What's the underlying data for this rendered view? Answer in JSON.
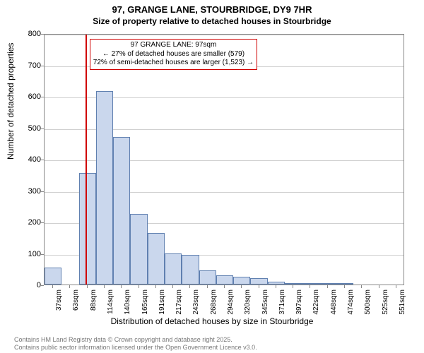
{
  "title_main": "97, GRANGE LANE, STOURBRIDGE, DY9 7HR",
  "title_sub": "Size of property relative to detached houses in Stourbridge",
  "y_axis_title": "Number of detached properties",
  "x_axis_title": "Distribution of detached houses by size in Stourbridge",
  "chart": {
    "type": "histogram",
    "ylim": [
      0,
      800
    ],
    "ytick_step": 100,
    "y_ticks": [
      0,
      100,
      200,
      300,
      400,
      500,
      600,
      700,
      800
    ],
    "x_tick_labels": [
      "37sqm",
      "63sqm",
      "88sqm",
      "114sqm",
      "140sqm",
      "165sqm",
      "191sqm",
      "217sqm",
      "243sqm",
      "268sqm",
      "294sqm",
      "320sqm",
      "345sqm",
      "371sqm",
      "397sqm",
      "422sqm",
      "448sqm",
      "474sqm",
      "500sqm",
      "525sqm",
      "551sqm"
    ],
    "values": [
      55,
      0,
      355,
      615,
      470,
      225,
      165,
      100,
      95,
      45,
      30,
      25,
      20,
      8,
      3,
      4,
      3,
      5,
      0,
      0,
      0
    ],
    "bar_color": "#cad7ed",
    "bar_border_color": "#6080b0",
    "grid_color": "#d0d0d0",
    "background_color": "#ffffff",
    "axis_fontsize": 11,
    "tick_fontsize": 10,
    "title_fontsize": 13,
    "marker_color": "#d00000",
    "marker_x_index": 2.38
  },
  "annotation": {
    "line1": "97 GRANGE LANE: 97sqm",
    "line2": "← 27% of detached houses are smaller (579)",
    "line3": "72% of semi-detached houses are larger (1,523) →",
    "border_color": "#d00000"
  },
  "footer_line1": "Contains HM Land Registry data © Crown copyright and database right 2025.",
  "footer_line2": "Contains public sector information licensed under the Open Government Licence v3.0."
}
